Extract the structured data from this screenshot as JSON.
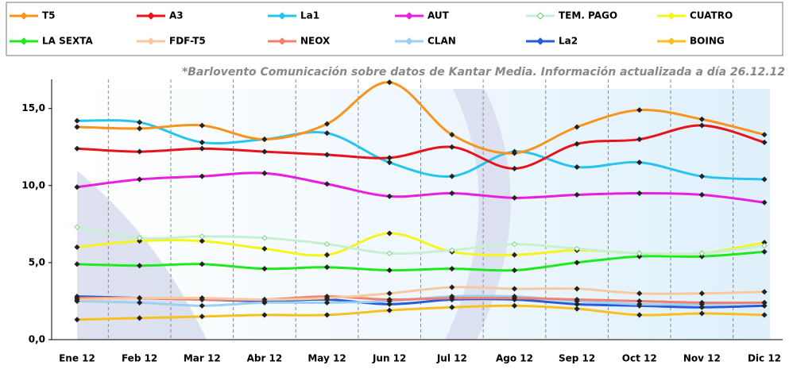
{
  "chart_data": {
    "type": "line",
    "annotation": "*Barlovento Comunicación sobre datos de Kantar Media. Información actualizada a día 26.12.12",
    "categories": [
      "Ene 12",
      "Feb 12",
      "Mar 12",
      "Abr 12",
      "May 12",
      "Jun 12",
      "Jul 12",
      "Ago 12",
      "Sep 12",
      "Oct 12",
      "Nov 12",
      "Dic 12"
    ],
    "ylim": [
      0,
      15.5
    ],
    "yticks": [
      {
        "value": 0,
        "label": "0,0"
      },
      {
        "value": 5,
        "label": "5,0"
      },
      {
        "value": 10,
        "label": "10,0"
      },
      {
        "value": 15,
        "label": "15,0"
      }
    ],
    "series": [
      {
        "name": "T5",
        "color": "#f7931e",
        "values": [
          13.8,
          13.7,
          13.9,
          13.0,
          14.0,
          16.7,
          13.3,
          12.1,
          13.8,
          14.9,
          14.3,
          13.3
        ]
      },
      {
        "name": "A3",
        "color": "#e8141b",
        "values": [
          12.4,
          12.2,
          12.4,
          12.2,
          12.0,
          11.8,
          12.5,
          11.1,
          12.7,
          13.0,
          13.9,
          12.8
        ]
      },
      {
        "name": "La1",
        "color": "#27c4f0",
        "values": [
          14.2,
          14.1,
          12.8,
          13.0,
          13.4,
          11.5,
          10.6,
          12.2,
          11.2,
          11.5,
          10.6,
          10.4
        ]
      },
      {
        "name": "AUT",
        "color": "#e81ee0",
        "values": [
          9.9,
          10.4,
          10.6,
          10.8,
          10.1,
          9.3,
          9.5,
          9.2,
          9.4,
          9.5,
          9.4,
          8.9
        ]
      },
      {
        "name": "TEM. PAGO",
        "color": "#c7f0d2",
        "values": [
          7.3,
          6.6,
          6.7,
          6.6,
          6.2,
          5.6,
          5.8,
          6.2,
          5.9,
          5.6,
          5.6,
          6.1
        ]
      },
      {
        "name": "CUATRO",
        "color": "#f5f51a",
        "values": [
          6.0,
          6.4,
          6.4,
          5.9,
          5.5,
          6.9,
          5.7,
          5.5,
          5.8,
          5.6,
          5.6,
          6.3
        ]
      },
      {
        "name": "LA SEXTA",
        "color": "#1ee81e",
        "values": [
          4.9,
          4.8,
          4.9,
          4.6,
          4.7,
          4.5,
          4.6,
          4.5,
          5.0,
          5.4,
          5.4,
          5.7
        ]
      },
      {
        "name": "FDF-T5",
        "color": "#f8c8a0",
        "values": [
          2.6,
          2.7,
          2.7,
          2.6,
          2.7,
          3.0,
          3.4,
          3.3,
          3.3,
          3.0,
          3.0,
          3.1
        ]
      },
      {
        "name": "NEOX",
        "color": "#f08070",
        "values": [
          2.7,
          2.7,
          2.6,
          2.6,
          2.8,
          2.6,
          2.7,
          2.7,
          2.6,
          2.5,
          2.4,
          2.4
        ]
      },
      {
        "name": "CLAN",
        "color": "#9ccff0",
        "values": [
          2.5,
          2.4,
          2.2,
          2.4,
          2.4,
          2.5,
          2.8,
          2.8,
          2.5,
          2.3,
          2.3,
          2.4
        ]
      },
      {
        "name": "La2",
        "color": "#2a5bd7",
        "values": [
          2.8,
          2.7,
          2.6,
          2.5,
          2.6,
          2.3,
          2.6,
          2.6,
          2.3,
          2.2,
          2.1,
          2.2
        ]
      },
      {
        "name": "BOING",
        "color": "#f7c01e",
        "values": [
          1.3,
          1.4,
          1.5,
          1.6,
          1.6,
          1.9,
          2.1,
          2.2,
          2.0,
          1.6,
          1.7,
          1.6
        ]
      }
    ]
  }
}
